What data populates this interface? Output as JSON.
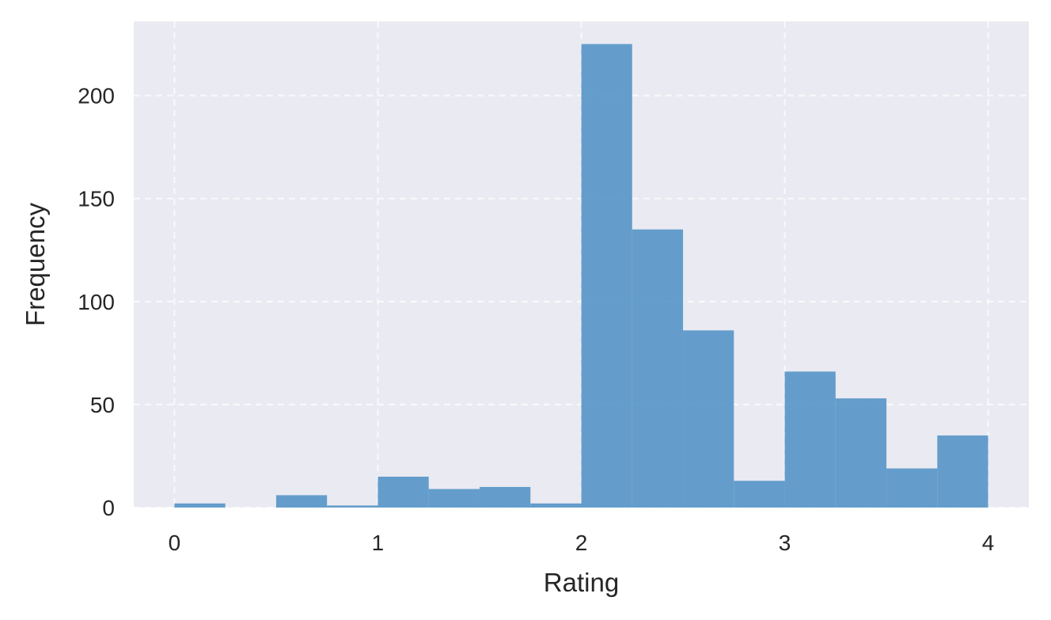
{
  "chart_data": {
    "type": "bar",
    "title": "",
    "xlabel": "Rating",
    "ylabel": "Frequency",
    "bin_width": 0.25,
    "bins": [
      {
        "start": 0.0,
        "end": 0.25,
        "value": 2
      },
      {
        "start": 0.25,
        "end": 0.5,
        "value": 0
      },
      {
        "start": 0.5,
        "end": 0.75,
        "value": 6
      },
      {
        "start": 0.75,
        "end": 1.0,
        "value": 1
      },
      {
        "start": 1.0,
        "end": 1.25,
        "value": 15
      },
      {
        "start": 1.25,
        "end": 1.5,
        "value": 9
      },
      {
        "start": 1.5,
        "end": 1.75,
        "value": 10
      },
      {
        "start": 1.75,
        "end": 2.0,
        "value": 2
      },
      {
        "start": 2.0,
        "end": 2.25,
        "value": 225
      },
      {
        "start": 2.25,
        "end": 2.5,
        "value": 135
      },
      {
        "start": 2.5,
        "end": 2.75,
        "value": 86
      },
      {
        "start": 2.75,
        "end": 3.0,
        "value": 13
      },
      {
        "start": 3.0,
        "end": 3.25,
        "value": 66
      },
      {
        "start": 3.25,
        "end": 3.5,
        "value": 53
      },
      {
        "start": 3.5,
        "end": 3.75,
        "value": 19
      },
      {
        "start": 3.75,
        "end": 4.0,
        "value": 35
      }
    ],
    "xlim": [
      -0.2,
      4.2
    ],
    "ylim": [
      0,
      236
    ],
    "x_ticks": [
      0,
      1,
      2,
      3,
      4
    ],
    "y_ticks": [
      0,
      50,
      100,
      150,
      200
    ],
    "x_tick_labels": [
      "0",
      "1",
      "2",
      "3",
      "4"
    ],
    "y_tick_labels": [
      "0",
      "50",
      "100",
      "150",
      "200"
    ],
    "grid": true,
    "colors": {
      "bar": "#4c8fc4",
      "plot_background": "#eaeaf2",
      "grid": "#ffffff",
      "text": "#262626"
    }
  }
}
